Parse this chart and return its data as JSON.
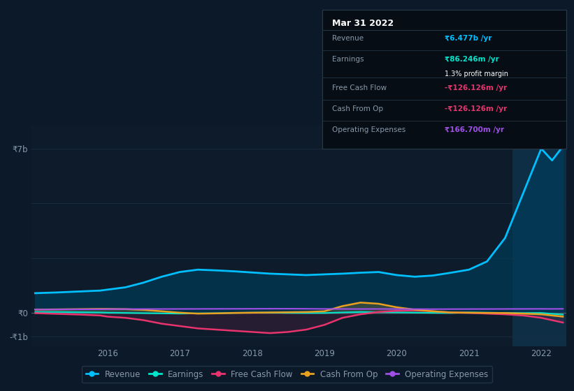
{
  "background_color": "#0b1929",
  "plot_bg_color": "#0d1b2a",
  "grid_color": "#1a2d42",
  "text_color": "#8899aa",
  "revenue_color": "#00bfff",
  "revenue_fill_color": "#003d5c",
  "earnings_color": "#00e5cc",
  "free_cash_flow_color": "#e8336d",
  "cash_from_op_color": "#e8a020",
  "operating_expenses_color": "#a050e8",
  "legend_bg": "#0b1929",
  "legend_border": "#2a3a4a",
  "tooltip_bg": "#060d14",
  "tooltip_border": "#2a3a4a",
  "tooltip_title": "Mar 31 2022",
  "tooltip_rows": [
    {
      "label": "Revenue",
      "value": "₹6.477b /yr",
      "value_color": "#00bfff",
      "extra": null
    },
    {
      "label": "Earnings",
      "value": "₹86.246m /yr",
      "value_color": "#00e5cc",
      "extra": "1.3% profit margin",
      "extra_bold": "1.3%",
      "extra_color": "#ffffff"
    },
    {
      "label": "Free Cash Flow",
      "value": "-₹126.126m /yr",
      "value_color": "#e8336d",
      "extra": null
    },
    {
      "label": "Cash From Op",
      "value": "-₹126.126m /yr",
      "value_color": "#e8336d",
      "extra": null
    },
    {
      "label": "Operating Expenses",
      "value": "₹166.700m /yr",
      "value_color": "#a050e8",
      "extra": null
    }
  ],
  "x": [
    2015.0,
    2015.3,
    2015.6,
    2015.9,
    2016.0,
    2016.25,
    2016.5,
    2016.75,
    2017.0,
    2017.25,
    2017.5,
    2017.75,
    2018.0,
    2018.25,
    2018.5,
    2018.75,
    2019.0,
    2019.25,
    2019.5,
    2019.75,
    2020.0,
    2020.25,
    2020.5,
    2020.75,
    2021.0,
    2021.25,
    2021.5,
    2021.75,
    2022.0,
    2022.15,
    2022.3
  ],
  "revenue": [
    850000000.0,
    880000000.0,
    920000000.0,
    960000000.0,
    1000000000.0,
    1100000000.0,
    1300000000.0,
    1550000000.0,
    1750000000.0,
    1850000000.0,
    1820000000.0,
    1780000000.0,
    1730000000.0,
    1680000000.0,
    1650000000.0,
    1620000000.0,
    1650000000.0,
    1680000000.0,
    1720000000.0,
    1750000000.0,
    1620000000.0,
    1550000000.0,
    1600000000.0,
    1720000000.0,
    1850000000.0,
    2200000000.0,
    3200000000.0,
    5100000000.0,
    7000000000.0,
    6500000000.0,
    7100000000.0
  ],
  "earnings": [
    50000000.0,
    50000000.0,
    40000000.0,
    30000000.0,
    20000000.0,
    10000000.0,
    0,
    -10000000.0,
    -20000000.0,
    -10000000.0,
    -5000000.0,
    10000000.0,
    20000000.0,
    20000000.0,
    10000000.0,
    5000000.0,
    5000000.0,
    30000000.0,
    50000000.0,
    40000000.0,
    30000000.0,
    20000000.0,
    10000000.0,
    5000000.0,
    30000000.0,
    20000000.0,
    10000000.0,
    5000000.0,
    10000000.0,
    -30000000.0,
    -60000000.0
  ],
  "free_cash_flow": [
    0,
    -30000000.0,
    -60000000.0,
    -100000000.0,
    -150000000.0,
    -200000000.0,
    -300000000.0,
    -450000000.0,
    -550000000.0,
    -650000000.0,
    -700000000.0,
    -750000000.0,
    -800000000.0,
    -850000000.0,
    -800000000.0,
    -700000000.0,
    -500000000.0,
    -200000000.0,
    -50000000.0,
    50000000.0,
    100000000.0,
    120000000.0,
    80000000.0,
    30000000.0,
    10000000.0,
    -20000000.0,
    -50000000.0,
    -100000000.0,
    -200000000.0,
    -300000000.0,
    -400000000.0
  ],
  "cash_from_op": [
    150000000.0,
    160000000.0,
    170000000.0,
    180000000.0,
    180000000.0,
    170000000.0,
    140000000.0,
    80000000.0,
    20000000.0,
    -20000000.0,
    -10000000.0,
    10000000.0,
    20000000.0,
    30000000.0,
    40000000.0,
    50000000.0,
    80000000.0,
    300000000.0,
    450000000.0,
    400000000.0,
    250000000.0,
    150000000.0,
    80000000.0,
    30000000.0,
    20000000.0,
    10000000.0,
    5000000.0,
    -20000000.0,
    -50000000.0,
    -100000000.0,
    -150000000.0
  ],
  "operating_expenses": [
    150000000.0,
    155000000.0,
    160000000.0,
    165000000.0,
    170000000.0,
    172000000.0,
    174000000.0,
    176000000.0,
    178000000.0,
    180000000.0,
    182000000.0,
    184000000.0,
    186000000.0,
    188000000.0,
    188000000.0,
    185000000.0,
    180000000.0,
    178000000.0,
    176000000.0,
    178000000.0,
    175000000.0,
    172000000.0,
    170000000.0,
    172000000.0,
    174000000.0,
    176000000.0,
    178000000.0,
    180000000.0,
    182000000.0,
    180000000.0,
    183000000.0
  ]
}
